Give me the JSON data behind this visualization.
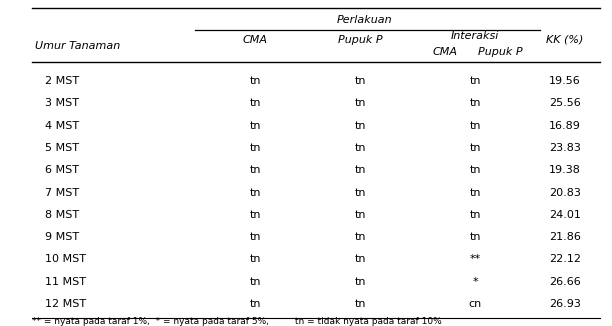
{
  "rows": [
    [
      "2 MST",
      "tn",
      "tn",
      "tn",
      "19.56"
    ],
    [
      "3 MST",
      "tn",
      "tn",
      "tn",
      "25.56"
    ],
    [
      "4 MST",
      "tn",
      "tn",
      "tn",
      "16.89"
    ],
    [
      "5 MST",
      "tn",
      "tn",
      "tn",
      "23.83"
    ],
    [
      "6 MST",
      "tn",
      "tn",
      "tn",
      "19.38"
    ],
    [
      "7 MST",
      "tn",
      "tn",
      "tn",
      "20.83"
    ],
    [
      "8 MST",
      "tn",
      "tn",
      "tn",
      "24.01"
    ],
    [
      "9 MST",
      "tn",
      "tn",
      "tn",
      "21.86"
    ],
    [
      "10 MST",
      "tn",
      "tn",
      "**",
      "22.12"
    ],
    [
      "11 MST",
      "tn",
      "tn",
      "*",
      "26.66"
    ],
    [
      "12 MST",
      "tn",
      "tn",
      "cn",
      "26.93"
    ]
  ],
  "header_perlakuan": "Perlakuan",
  "header_umur": "Umur Tanaman",
  "header_cma": "CMA",
  "header_pupukp": "Pupuk P",
  "header_interaksi": "Interaksi",
  "header_sub_cma": "CMA",
  "header_sub_pupukp": "Pupuk P",
  "header_kk": "KK (%)",
  "footnote": "** = nyata pada taraf 1%,  * = nyata pada taraf 5%,         tn = tidak nyata pada taraf 10%",
  "bg_color": "#ffffff",
  "text_color": "#000000",
  "font_size": 8.0,
  "footnote_size": 6.5
}
